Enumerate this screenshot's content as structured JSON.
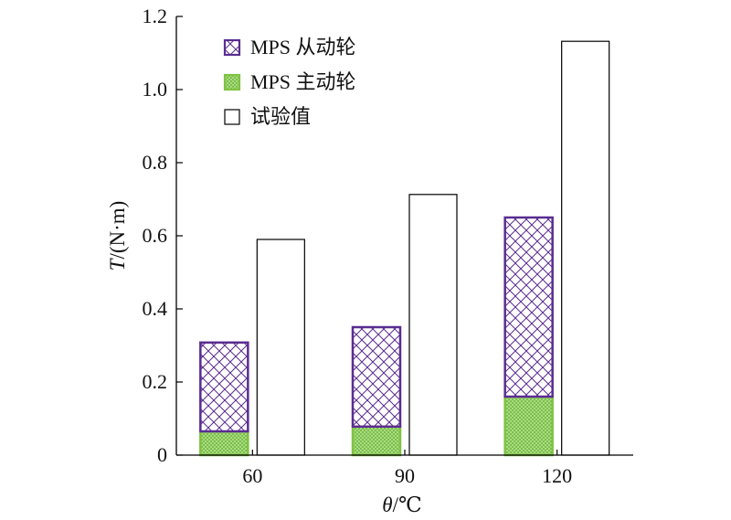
{
  "chart_data": {
    "type": "bar",
    "stacked_with_reference": true,
    "categories": [
      "60",
      "90",
      "120"
    ],
    "series": [
      {
        "name": "MPS 主动轮",
        "values": [
          0.065,
          0.078,
          0.16
        ],
        "color": "#7fc241",
        "pattern": "dots",
        "stack": "mps"
      },
      {
        "name": "MPS 从动轮",
        "values": [
          0.243,
          0.272,
          0.49
        ],
        "color": "#5a2d91",
        "pattern": "crosshatch",
        "stack": "mps"
      },
      {
        "name": "试验值",
        "values": [
          0.59,
          0.713,
          1.132
        ],
        "color": "#000000",
        "pattern": "none",
        "stack": "test"
      }
    ],
    "xlabel": {
      "italic": "θ",
      "rest": "/℃"
    },
    "ylabel": {
      "italic": "T",
      "rest": "/(N·m)"
    },
    "ylim": [
      0,
      1.2
    ],
    "yticks": [
      "0",
      "0.2",
      "0.4",
      "0.6",
      "0.8",
      "1.0",
      "1.2"
    ],
    "legend": {
      "placement": "top-left",
      "order": [
        "MPS 从动轮",
        "MPS 主动轮",
        "试验值"
      ]
    },
    "grid": false
  }
}
